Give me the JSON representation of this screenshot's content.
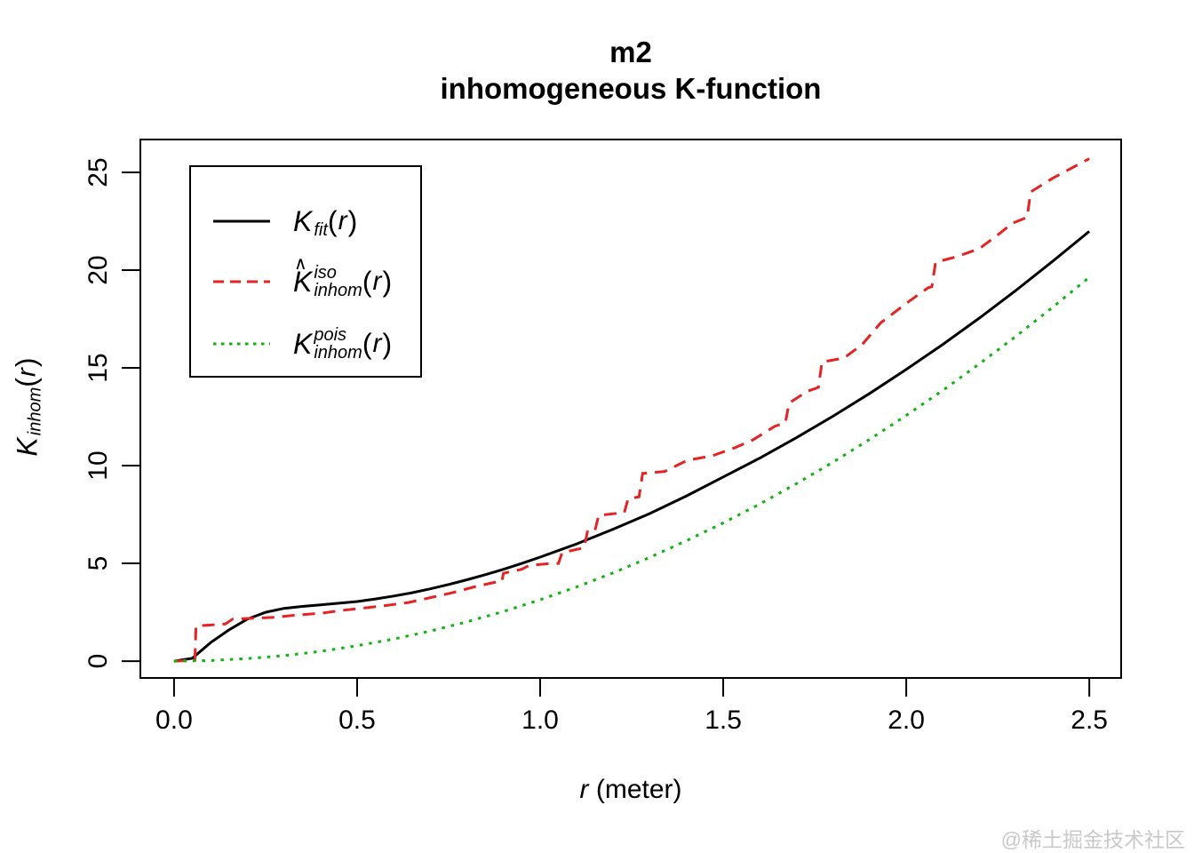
{
  "watermark": "@稀土掘金技术社区",
  "chart_data": {
    "type": "line",
    "title_line1": "m2",
    "title_line2": "inhomogeneous K-function",
    "xlabel": "r (meter)",
    "ylabel": "K_inhom(r)",
    "grid": false,
    "x_axis": {
      "label_r": "r",
      "label_rest": " (meter)",
      "ticks": [
        0,
        0.5,
        1.0,
        1.5,
        2.0,
        2.5
      ],
      "tick_labels": [
        "0.0",
        "0.5",
        "1.0",
        "1.5",
        "2.0",
        "2.5"
      ],
      "range": [
        -0.092,
        2.587
      ]
    },
    "y_axis": {
      "ticks": [
        0,
        5,
        10,
        15,
        20,
        25
      ],
      "tick_labels": [
        "0",
        "5",
        "10",
        "15",
        "20",
        "25"
      ],
      "range": [
        -0.86,
        26.68
      ],
      "label_math": {
        "k": "K",
        "hat": false,
        "sup": "",
        "sub": "inhom",
        "arg_open": "(",
        "arg_r": "r",
        "arg_close": ")"
      }
    },
    "series": [
      {
        "name": "K_fit(r)",
        "color": "#000000",
        "style": "solid",
        "x": [
          0,
          0.05,
          0.1,
          0.15,
          0.2,
          0.25,
          0.3,
          0.35,
          0.4,
          0.45,
          0.5,
          0.55,
          0.6,
          0.65,
          0.7,
          0.75,
          0.8,
          0.85,
          0.9,
          0.95,
          1.0,
          1.1,
          1.2,
          1.3,
          1.4,
          1.5,
          1.6,
          1.7,
          1.8,
          1.9,
          2.0,
          2.1,
          2.2,
          2.3,
          2.4,
          2.5
        ],
        "y": [
          0,
          0.15,
          0.95,
          1.6,
          2.15,
          2.5,
          2.7,
          2.8,
          2.88,
          2.96,
          3.05,
          3.18,
          3.33,
          3.5,
          3.7,
          3.92,
          4.16,
          4.42,
          4.7,
          5.0,
          5.32,
          6.0,
          6.75,
          7.55,
          8.45,
          9.42,
          10.39,
          11.43,
          12.53,
          13.69,
          14.92,
          16.2,
          17.55,
          18.97,
          20.45,
          21.98
        ]
      },
      {
        "name": "K_inhom^iso(r)",
        "color": "#e62222",
        "style": "dashed",
        "x": [
          0,
          0.05,
          0.057,
          0.06,
          0.1,
          0.14,
          0.16,
          0.22,
          0.28,
          0.33,
          0.4,
          0.46,
          0.52,
          0.58,
          0.64,
          0.7,
          0.76,
          0.82,
          0.88,
          0.895,
          0.9,
          0.95,
          0.97,
          1.03,
          1.05,
          1.06,
          1.12,
          1.13,
          1.15,
          1.16,
          1.23,
          1.24,
          1.27,
          1.28,
          1.34,
          1.4,
          1.41,
          1.47,
          1.53,
          1.58,
          1.64,
          1.67,
          1.68,
          1.73,
          1.76,
          1.77,
          1.83,
          1.88,
          1.93,
          2.0,
          2.06,
          2.07,
          2.08,
          2.14,
          2.2,
          2.25,
          2.29,
          2.33,
          2.34,
          2.4,
          2.45,
          2.5
        ],
        "y": [
          0,
          0.05,
          0.05,
          1.8,
          1.85,
          1.9,
          2.15,
          2.2,
          2.25,
          2.35,
          2.45,
          2.6,
          2.72,
          2.85,
          3.0,
          3.25,
          3.5,
          3.8,
          4.05,
          4.05,
          4.5,
          4.7,
          4.9,
          5.0,
          5.0,
          5.55,
          5.8,
          6.7,
          6.7,
          7.45,
          7.6,
          8.3,
          8.4,
          9.6,
          9.7,
          10.25,
          10.3,
          10.5,
          10.9,
          11.3,
          12.0,
          12.2,
          13.2,
          13.8,
          14.0,
          15.3,
          15.5,
          16.2,
          17.3,
          18.3,
          19.1,
          19.15,
          20.4,
          20.7,
          21.1,
          21.8,
          22.4,
          22.7,
          24.0,
          24.7,
          25.2,
          25.7
        ]
      },
      {
        "name": "K_inhom^pois(r)",
        "color": "#0fb30f",
        "style": "dotted",
        "x": [
          0,
          0.1,
          0.2,
          0.3,
          0.4,
          0.5,
          0.6,
          0.7,
          0.8,
          0.9,
          1.0,
          1.1,
          1.2,
          1.3,
          1.4,
          1.5,
          1.6,
          1.7,
          1.8,
          1.9,
          2.0,
          2.1,
          2.2,
          2.3,
          2.4,
          2.5
        ],
        "y": [
          0,
          0.03,
          0.13,
          0.28,
          0.5,
          0.79,
          1.13,
          1.54,
          2.01,
          2.54,
          3.14,
          3.8,
          4.52,
          5.31,
          6.16,
          7.07,
          8.04,
          9.08,
          10.18,
          11.34,
          12.57,
          13.85,
          15.21,
          16.62,
          18.1,
          19.63
        ]
      }
    ],
    "legend": {
      "position": "top-left",
      "entries": [
        {
          "label_plain": "K_fit(r)",
          "line_color": "#000000",
          "line_style": "solid",
          "k": "K",
          "hat": false,
          "sup": "",
          "sub": "fit",
          "arg_open": "(",
          "arg_r": "r",
          "arg_close": ")"
        },
        {
          "label_plain": "K_inhom^iso(r)",
          "line_color": "#e62222",
          "line_style": "dashed",
          "k": "K",
          "hat": true,
          "sup": "iso",
          "sub": "inhom",
          "arg_open": "(",
          "arg_r": "r",
          "arg_close": ")"
        },
        {
          "label_plain": "K_inhom^pois(r)",
          "line_color": "#0fb30f",
          "line_style": "dotted",
          "k": "K",
          "hat": false,
          "sup": "pois",
          "sub": "inhom",
          "arg_open": "(",
          "arg_r": "r",
          "arg_close": ")"
        }
      ]
    }
  }
}
